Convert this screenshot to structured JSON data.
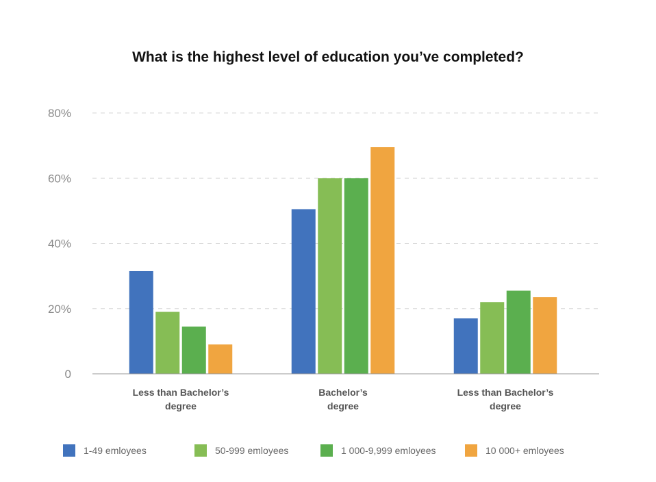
{
  "chart_data": {
    "type": "bar",
    "title": "What is the highest level of education you’ve completed?",
    "xlabel": "",
    "ylabel": "",
    "categories": [
      [
        "Less than Bachelor’s",
        "degree"
      ],
      [
        "Bachelor’s",
        "degree"
      ],
      [
        "Less than Bachelor’s",
        "degree"
      ]
    ],
    "series": [
      {
        "name": "1-49 emloyees",
        "color": "#4173bd",
        "values": [
          31.5,
          50.5,
          17
        ]
      },
      {
        "name": "50-999 emloyees",
        "color": "#86bd55",
        "values": [
          19,
          60,
          22
        ]
      },
      {
        "name": "1 000-9,999 emloyees",
        "color": "#5baf4f",
        "values": [
          14.5,
          60,
          25.5
        ]
      },
      {
        "name": "10 000+ emloyees",
        "color": "#f0a540",
        "values": [
          9,
          69.5,
          23.5
        ]
      }
    ],
    "ylim": [
      0,
      80
    ],
    "yticks": [
      {
        "value": 0,
        "label": "0"
      },
      {
        "value": 20,
        "label": "20%"
      },
      {
        "value": 40,
        "label": "40%"
      },
      {
        "value": 60,
        "label": "60%"
      },
      {
        "value": 80,
        "label": "80%"
      }
    ],
    "grid": "dashed horizontal",
    "legend_position": "bottom"
  }
}
